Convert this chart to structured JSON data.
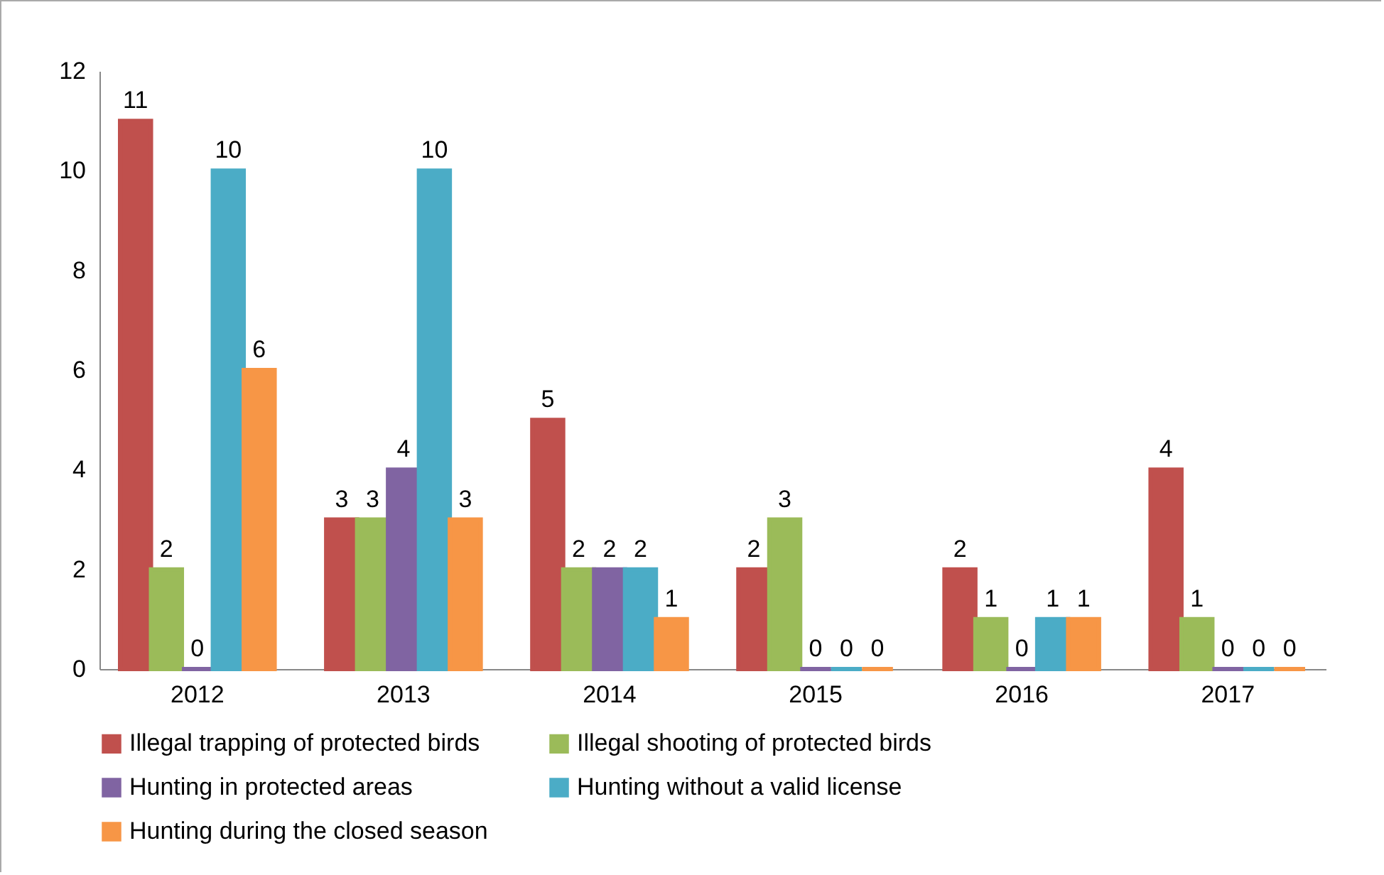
{
  "chart_data": {
    "type": "bar",
    "categories": [
      "2012",
      "2013",
      "2014",
      "2015",
      "2016",
      "2017"
    ],
    "series": [
      {
        "name": "Illegal trapping of protected birds",
        "color": "#c0504d",
        "values": [
          11,
          3,
          5,
          2,
          2,
          4
        ]
      },
      {
        "name": "Illegal shooting of protected birds",
        "color": "#9bbb59",
        "values": [
          2,
          3,
          2,
          3,
          1,
          1
        ]
      },
      {
        "name": "Hunting in protected areas",
        "color": "#8064a2",
        "values": [
          0,
          4,
          2,
          0,
          0,
          0
        ]
      },
      {
        "name": "Hunting without a valid license",
        "color": "#4bacc6",
        "values": [
          10,
          10,
          2,
          0,
          1,
          0
        ]
      },
      {
        "name": "Hunting during the closed season",
        "color": "#f79646",
        "values": [
          6,
          3,
          1,
          0,
          1,
          0
        ]
      }
    ],
    "ylim": [
      0,
      12
    ],
    "yticks": [
      0,
      2,
      4,
      6,
      8,
      10,
      12
    ],
    "data_labels": true,
    "legend": "bottom"
  }
}
